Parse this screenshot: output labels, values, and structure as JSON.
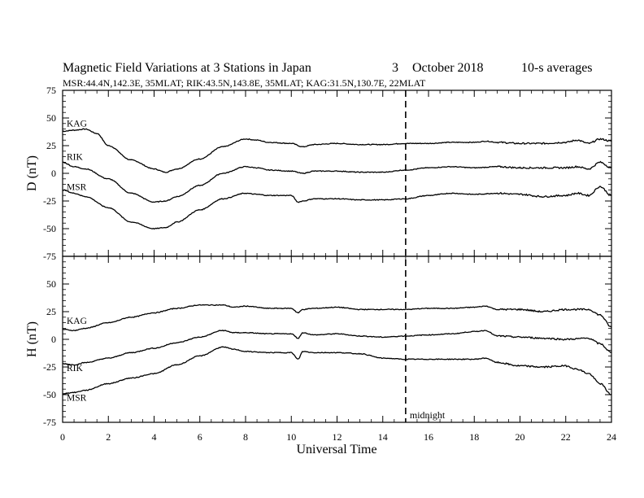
{
  "chart_data": {
    "type": "line",
    "title": "Magnetic Field Variations at 3 Stations in Japan",
    "title_day": "3",
    "title_date": "October 2018",
    "title_avg": "10-s averages",
    "subtitle": "MSR:44.4N,142.3E, 35MLAT;  RIK:43.5N,143.8E, 35MLAT;  KAG:31.5N,130.7E, 22MLAT",
    "xlabel": "Universal Time",
    "xlim": [
      0,
      24
    ],
    "xticks": [
      0,
      2,
      4,
      6,
      8,
      10,
      12,
      14,
      16,
      18,
      20,
      22,
      24
    ],
    "annotation": {
      "text": "midnight",
      "x": 15,
      "style": "dashed vertical line"
    },
    "panels": [
      {
        "ylabel": "D (nT)",
        "ylim": [
          -75,
          75
        ],
        "yticks": [
          75,
          50,
          25,
          0,
          -25,
          -50,
          -75
        ],
        "series": [
          {
            "name": "KAG",
            "x": [
              0,
              0.5,
              1.0,
              1.5,
              2,
              3,
              4,
              4.5,
              5,
              6,
              7,
              8,
              8.5,
              9,
              10,
              10.5,
              11,
              12,
              13,
              14,
              15,
              16,
              17,
              18,
              18.5,
              19,
              20,
              21,
              22,
              22.5,
              23,
              23.5,
              24
            ],
            "values": [
              38,
              39,
              40,
              36,
              25,
              12,
              4,
              1,
              4,
              13,
              24,
              31,
              30,
              28,
              27,
              24,
              26,
              27,
              26,
              26,
              27,
              27,
              28,
              28,
              29,
              28,
              27,
              27,
              28,
              30,
              27,
              31,
              29
            ]
          },
          {
            "name": "RIK",
            "x": [
              0,
              0.5,
              1.0,
              2,
              3,
              4,
              4.5,
              5,
              6,
              7,
              8,
              8.5,
              9,
              10,
              10.5,
              11,
              12,
              13,
              14,
              15,
              16,
              17,
              18,
              19,
              20,
              21,
              22,
              22.5,
              23,
              23.5,
              24
            ],
            "values": [
              10,
              6,
              4,
              -5,
              -18,
              -26,
              -25,
              -21,
              -11,
              0,
              6,
              5,
              3,
              2,
              0,
              2,
              2,
              1,
              1,
              3,
              5,
              6,
              5,
              6,
              5,
              5,
              5,
              6,
              4,
              10,
              5
            ]
          },
          {
            "name": "MSR",
            "x": [
              0,
              0.5,
              1.0,
              2,
              3,
              4,
              4.5,
              5,
              6,
              7,
              8,
              8.5,
              9,
              10,
              10.3,
              10.5,
              11,
              12,
              13,
              14,
              15,
              16,
              17,
              18,
              19,
              20,
              21,
              22,
              22.5,
              23,
              23.5,
              24
            ],
            "values": [
              -15,
              -18,
              -21,
              -31,
              -44,
              -50,
              -49,
              -44,
              -33,
              -23,
              -18,
              -19,
              -20,
              -20,
              -26,
              -25,
              -23,
              -23,
              -24,
              -24,
              -23,
              -20,
              -18,
              -19,
              -18,
              -19,
              -21,
              -20,
              -18,
              -20,
              -12,
              -20
            ]
          }
        ]
      },
      {
        "ylabel": "H (nT)",
        "ylim": [
          -75,
          75
        ],
        "yticks": [
          75,
          50,
          25,
          0,
          -25,
          -50,
          -75
        ],
        "series": [
          {
            "name": "KAG",
            "x": [
              0,
              0.5,
              1,
              2,
              3,
              4,
              5,
              6,
              7,
              7.5,
              8,
              9,
              10,
              10.3,
              10.5,
              11,
              12,
              13,
              14,
              15,
              16,
              17,
              18,
              18.5,
              19,
              20,
              21,
              22,
              23,
              23.5,
              24
            ],
            "values": [
              9,
              8,
              10,
              15,
              20,
              24,
              28,
              31,
              31,
              29,
              30,
              28,
              28,
              24,
              27,
              28,
              29,
              27,
              27,
              27,
              28,
              28,
              29,
              30,
              27,
              27,
              25,
              27,
              27,
              22,
              11
            ]
          },
          {
            "name": "RIK",
            "x": [
              0,
              0.5,
              1,
              2,
              3,
              4,
              5,
              6,
              7,
              7.5,
              8,
              9,
              10,
              10.3,
              10.5,
              11,
              12,
              13,
              14,
              15,
              16,
              17,
              18,
              18.5,
              19,
              20,
              21,
              22,
              23,
              23.5,
              24
            ],
            "values": [
              -22,
              -23,
              -21,
              -17,
              -12,
              -8,
              -3,
              2,
              8,
              6,
              6,
              5,
              5,
              1,
              6,
              4,
              5,
              3,
              2,
              3,
              4,
              5,
              7,
              8,
              3,
              2,
              1,
              0,
              1,
              -4,
              -12
            ]
          },
          {
            "name": "MSR",
            "x": [
              0,
              0.5,
              1,
              2,
              3,
              4,
              5,
              6,
              7,
              7.5,
              8,
              9,
              10,
              10.3,
              10.5,
              11,
              12,
              13,
              14,
              15,
              16,
              17,
              18,
              18.5,
              19,
              20,
              21,
              22,
              22.5,
              23,
              23.5,
              24
            ],
            "values": [
              -49,
              -48,
              -46,
              -40,
              -35,
              -31,
              -23,
              -15,
              -7,
              -9,
              -11,
              -12,
              -12,
              -18,
              -11,
              -12,
              -12,
              -13,
              -17,
              -18,
              -18,
              -18,
              -18,
              -17,
              -21,
              -24,
              -25,
              -24,
              -27,
              -31,
              -40,
              -50
            ]
          }
        ]
      }
    ]
  }
}
